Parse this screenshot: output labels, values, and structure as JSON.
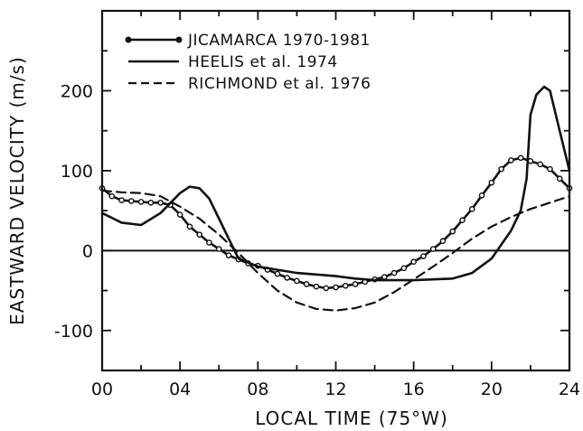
{
  "chart_data": {
    "type": "line",
    "xlabel": "LOCAL TIME (75°W)",
    "ylabel": "EASTWARD VELOCITY (m/s)",
    "xlim": [
      0,
      24
    ],
    "ylim": [
      -150,
      300
    ],
    "x_ticks": [
      "00",
      "04",
      "08",
      "12",
      "16",
      "20",
      "24"
    ],
    "y_ticks": [
      "200",
      "100",
      "0",
      "-100"
    ],
    "zero_line": true,
    "legend_position": "top-left",
    "series": [
      {
        "name": "JICAMARCA 1970-1981",
        "style": "line-with-circle-markers",
        "x": [
          0,
          0.5,
          1,
          1.5,
          2,
          2.5,
          3,
          3.5,
          4,
          4.5,
          5,
          5.5,
          6,
          6.5,
          7,
          7.5,
          8,
          8.5,
          9,
          9.5,
          10,
          10.5,
          11,
          11.5,
          12,
          12.5,
          13,
          13.5,
          14,
          14.5,
          15,
          15.5,
          16,
          16.5,
          17,
          17.5,
          18,
          18.5,
          19,
          19.5,
          20,
          20.5,
          21,
          21.5,
          22,
          22.5,
          23,
          23.5,
          24
        ],
        "y": [
          78,
          68,
          63,
          62,
          61,
          60,
          60,
          57,
          45,
          30,
          20,
          10,
          2,
          -6,
          -11,
          -16,
          -19,
          -24,
          -29,
          -34,
          -38,
          -42,
          -45,
          -47,
          -46,
          -44,
          -42,
          -39,
          -36,
          -33,
          -28,
          -22,
          -14,
          -7,
          2,
          12,
          24,
          38,
          52,
          69,
          85,
          102,
          113,
          116,
          112,
          108,
          102,
          90,
          78
        ]
      },
      {
        "name": "HEELIS et al. 1974",
        "style": "solid",
        "x": [
          0,
          1,
          2,
          3,
          4,
          4.5,
          5,
          5.5,
          6,
          6.5,
          7,
          8,
          10,
          12,
          13,
          14,
          16,
          18,
          19,
          20,
          21,
          21.5,
          21.8,
          22,
          22.3,
          22.7,
          23,
          23.5,
          24
        ],
        "y": [
          47,
          35,
          32,
          47,
          72,
          80,
          78,
          65,
          40,
          15,
          -10,
          -20,
          -28,
          -32,
          -35,
          -37,
          -37,
          -35,
          -28,
          -10,
          25,
          50,
          90,
          170,
          195,
          205,
          200,
          150,
          100
        ]
      },
      {
        "name": "RICHMOND et al. 1976",
        "style": "dashed",
        "x": [
          0,
          1,
          2,
          3,
          4,
          5,
          6,
          7,
          8,
          9,
          10,
          11,
          12,
          13,
          14,
          15,
          16,
          17,
          18,
          19,
          20,
          21,
          22,
          23,
          24
        ],
        "y": [
          75,
          73,
          72,
          68,
          55,
          40,
          20,
          -3,
          -28,
          -50,
          -65,
          -73,
          -75,
          -72,
          -65,
          -52,
          -36,
          -20,
          -3,
          15,
          30,
          42,
          52,
          60,
          68
        ]
      }
    ]
  }
}
